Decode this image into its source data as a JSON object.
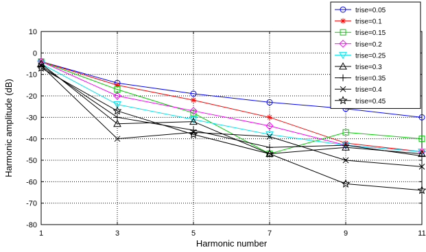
{
  "chart_data": {
    "type": "line",
    "title": "",
    "xlabel": "Harmonic number",
    "ylabel": "Harmonic amplitude (dB)",
    "x": [
      1,
      3,
      5,
      7,
      9,
      11
    ],
    "xticks": [
      "1",
      "3",
      "5",
      "7",
      "9",
      "11"
    ],
    "yticks": [
      "10",
      "0",
      "-10",
      "-20",
      "-30",
      "-40",
      "-50",
      "-60",
      "-70",
      "-80"
    ],
    "xlim": [
      1,
      11
    ],
    "ylim": [
      -80,
      10
    ],
    "grid": true,
    "legend_position": "top-right, overlapping plot",
    "series": [
      {
        "name": "trise=0.05",
        "color": "#0000ff",
        "marker": "circle",
        "values": [
          -4,
          -14,
          -19,
          -23,
          -26,
          -30
        ]
      },
      {
        "name": "trise=0.1",
        "color": "#ff0000",
        "marker": "asterisk",
        "values": [
          -4,
          -15,
          -22,
          -30,
          -42,
          -46
        ]
      },
      {
        "name": "trise=0.15",
        "color": "#00cc00",
        "marker": "square",
        "values": [
          -4,
          -17,
          -28,
          -47,
          -37,
          -40
        ]
      },
      {
        "name": "trise=0.2",
        "color": "#ff00ff",
        "marker": "diamond",
        "values": [
          -4,
          -20,
          -27,
          -34,
          -43,
          -46
        ]
      },
      {
        "name": "trise=0.25",
        "color": "#00e5ee",
        "marker": "triangle-down",
        "values": [
          -5,
          -24,
          -31,
          -38,
          -43,
          -46
        ]
      },
      {
        "name": "trise=0.3",
        "color": "#000000",
        "marker": "triangle-up",
        "values": [
          -5,
          -33,
          -32,
          -47,
          -44,
          -47
        ]
      },
      {
        "name": "trise=0.35",
        "color": "#000000",
        "marker": "plus",
        "values": [
          -6,
          -30,
          -36,
          -44,
          -43,
          -48
        ]
      },
      {
        "name": "trise=0.4",
        "color": "#000000",
        "marker": "x",
        "values": [
          -6,
          -40,
          -37,
          -39,
          -50,
          -53
        ]
      },
      {
        "name": "trise=0.45",
        "color": "#000000",
        "marker": "star",
        "values": [
          -7,
          -27,
          -38,
          -47,
          -61,
          -64
        ]
      }
    ]
  }
}
